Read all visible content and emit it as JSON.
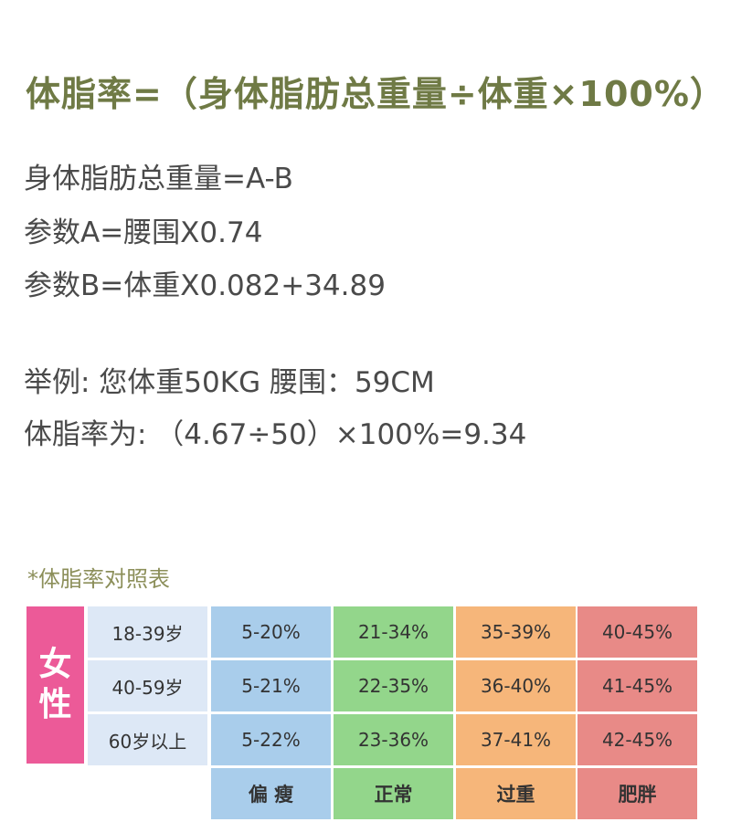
{
  "formula": {
    "title": "体脂率=（身体脂肪总重量÷体重×100%）"
  },
  "definitions": [
    "身体脂肪总重量=A-B",
    "参数A=腰围X0.74",
    "参数B=体重X0.082+34.89"
  ],
  "example": {
    "line1": "举例: 您体重50KG  腰围：59CM",
    "line2": "体脂率为: （4.67÷50）×100%=9.34"
  },
  "table": {
    "caption": "*体脂率对照表",
    "gender_chars": [
      "女",
      "性"
    ],
    "rows": [
      {
        "age": "18-39岁",
        "thin": "5-20%",
        "normal": "21-34%",
        "over": "35-39%",
        "fat": "40-45%"
      },
      {
        "age": "40-59岁",
        "thin": "5-21%",
        "normal": "22-35%",
        "over": "36-40%",
        "fat": "41-45%"
      },
      {
        "age": "60岁以上",
        "thin": "5-22%",
        "normal": "23-36%",
        "over": "37-41%",
        "fat": "42-45%"
      }
    ],
    "labels": {
      "thin": "偏 瘦",
      "normal": "正常",
      "over": "过重",
      "fat": "肥胖"
    }
  },
  "colors": {
    "title": "#6f7a45",
    "gender": "#ec5a98",
    "age": "#dde8f6",
    "thin": "#a9cdeb",
    "normal": "#93d68b",
    "over": "#f6b67a",
    "fat": "#e88a87"
  }
}
